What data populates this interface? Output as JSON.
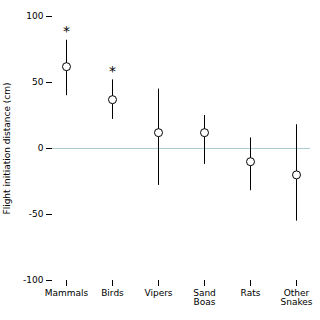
{
  "chart_data": {
    "type": "errorbar",
    "categories": [
      "Mammals",
      "Birds",
      "Vipers",
      "Sand\nBoas",
      "Rats",
      "Other\nSnakes"
    ],
    "values": [
      62,
      37,
      12,
      12,
      -10,
      -20
    ],
    "ci_upper": [
      82,
      52,
      45,
      25,
      8,
      18
    ],
    "ci_lower": [
      40,
      22,
      -28,
      -12,
      -32,
      -55
    ],
    "annotations": [
      {
        "category": "Mammals",
        "text": "*"
      },
      {
        "category": "Birds",
        "text": "*"
      }
    ],
    "ylabel": "Flight initiation distance (cm)",
    "ylim": [
      -100,
      100
    ],
    "yticks": [
      -100,
      -50,
      0,
      50,
      100
    ],
    "hline": {
      "y": 0,
      "color": "#aacccc"
    },
    "color": "black",
    "marker": "circle",
    "grid": false
  }
}
